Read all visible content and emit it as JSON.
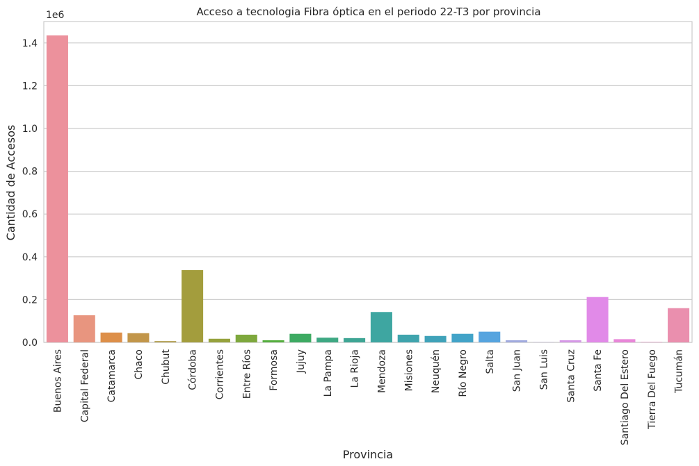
{
  "chart_data": {
    "type": "bar",
    "title": "Acceso a tecnologia Fibra óptica en el periodo 22-T3 por provincia",
    "xlabel": "Provincia",
    "ylabel": "Cantidad de Accesos",
    "offset_label": "1e6",
    "ylim": [
      0,
      1.5
    ],
    "yticks": [
      "0.0",
      "0.2",
      "0.4",
      "0.6",
      "0.8",
      "1.0",
      "1.2",
      "1.4"
    ],
    "grid": true,
    "categories": [
      "Buenos Aires",
      "Capital Federal",
      "Catamarca",
      "Chaco",
      "Chubut",
      "Córdoba",
      "Corrientes",
      "Entre Ríos",
      "Formosa",
      "Jujuy",
      "La Pampa",
      "La Rioja",
      "Mendoza",
      "Misiones",
      "Neuquén",
      "Río Negro",
      "Salta",
      "San Juan",
      "San Luis",
      "Santa Cruz",
      "Santa Fe",
      "Santiago Del Estero",
      "Tierra Del Fuego",
      "Tucumán"
    ],
    "values": [
      1.435,
      0.127,
      0.046,
      0.043,
      0.006,
      0.338,
      0.017,
      0.036,
      0.01,
      0.04,
      0.022,
      0.02,
      0.142,
      0.036,
      0.03,
      0.04,
      0.05,
      0.01,
      0.001,
      0.01,
      0.212,
      0.015,
      0.002,
      0.16
    ],
    "colors": [
      "#ec919c",
      "#e8957f",
      "#dd8f49",
      "#c2964a",
      "#b09c4a",
      "#a39d3d",
      "#96a23d",
      "#7ea83d",
      "#55ae3e",
      "#3daa62",
      "#3ea883",
      "#3ea594",
      "#3ea6a1",
      "#3fa4ad",
      "#3fa2b9",
      "#42a3c8",
      "#56a4df",
      "#a0aade",
      "#b8a7e6",
      "#d598e6",
      "#e18ae8",
      "#e887d8",
      "#eb8bc4",
      "#ea8fae"
    ]
  }
}
